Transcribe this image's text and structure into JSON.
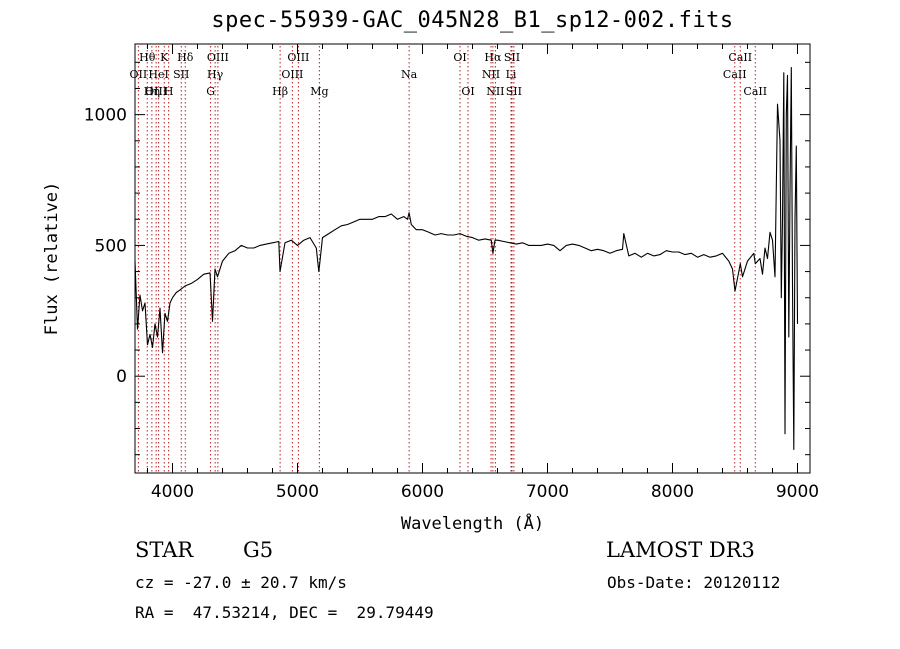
{
  "chart_data": {
    "type": "line",
    "title": "spec-55939-GAC_045N28_B1_sp12-002.fits",
    "xlabel": "Wavelength (Å)",
    "ylabel": "Flux (relative)",
    "xlim": [
      3700,
      9100
    ],
    "ylim": [
      -370,
      1270
    ],
    "xticks": [
      {
        "value": 4000,
        "label": "4000"
      },
      {
        "value": 5000,
        "label": "5000"
      },
      {
        "value": 6000,
        "label": "6000"
      },
      {
        "value": 7000,
        "label": "7000"
      },
      {
        "value": 8000,
        "label": "8000"
      },
      {
        "value": 9000,
        "label": "9000"
      }
    ],
    "yticks": [
      {
        "value": 0,
        "label": "0"
      },
      {
        "value": 500,
        "label": "500"
      },
      {
        "value": 1000,
        "label": "1000"
      }
    ],
    "series": [
      {
        "x": [
          3700,
          3720,
          3740,
          3760,
          3780,
          3800,
          3820,
          3840,
          3860,
          3880,
          3900,
          3920,
          3940,
          3960,
          3980,
          4000,
          4030,
          4060,
          4100,
          4150,
          4200,
          4250,
          4300,
          4320,
          4340,
          4360,
          4400,
          4450,
          4500,
          4550,
          4600,
          4650,
          4700,
          4750,
          4800,
          4850,
          4860,
          4900,
          4950,
          5000,
          5050,
          5100,
          5150,
          5170,
          5180,
          5200,
          5250,
          5300,
          5350,
          5400,
          5450,
          5500,
          5550,
          5600,
          5650,
          5700,
          5750,
          5800,
          5850,
          5880,
          5893,
          5910,
          5930,
          5950,
          6000,
          6050,
          6100,
          6150,
          6200,
          6250,
          6300,
          6350,
          6400,
          6450,
          6500,
          6550,
          6563,
          6580,
          6600,
          6650,
          6700,
          6750,
          6800,
          6850,
          6900,
          6950,
          7000,
          7050,
          7100,
          7150,
          7200,
          7250,
          7300,
          7350,
          7400,
          7450,
          7500,
          7550,
          7600,
          7610,
          7650,
          7700,
          7750,
          7800,
          7850,
          7900,
          7950,
          8000,
          8050,
          8100,
          8150,
          8200,
          8250,
          8300,
          8350,
          8400,
          8450,
          8480,
          8500,
          8542,
          8560,
          8600,
          8650,
          8662,
          8700,
          8720,
          8740,
          8760,
          8780,
          8800,
          8820,
          8840,
          8860,
          8870,
          8880,
          8890,
          8900,
          8910,
          8920,
          8930,
          8940,
          8950,
          8960,
          8970,
          8980,
          8990,
          9000
        ],
        "y": [
          440,
          180,
          310,
          250,
          280,
          120,
          160,
          110,
          200,
          150,
          260,
          90,
          240,
          210,
          280,
          300,
          320,
          330,
          345,
          355,
          370,
          390,
          395,
          210,
          410,
          380,
          440,
          470,
          480,
          500,
          490,
          490,
          500,
          505,
          510,
          515,
          400,
          510,
          520,
          500,
          520,
          530,
          490,
          400,
          440,
          530,
          545,
          560,
          575,
          580,
          590,
          600,
          600,
          600,
          610,
          610,
          620,
          600,
          610,
          600,
          625,
          580,
          570,
          560,
          560,
          550,
          540,
          545,
          540,
          540,
          545,
          535,
          530,
          520,
          525,
          520,
          470,
          520,
          520,
          515,
          510,
          505,
          510,
          500,
          500,
          500,
          505,
          500,
          480,
          500,
          505,
          500,
          490,
          480,
          485,
          480,
          470,
          480,
          485,
          545,
          460,
          470,
          455,
          470,
          460,
          465,
          480,
          475,
          475,
          465,
          470,
          455,
          465,
          455,
          460,
          470,
          440,
          410,
          325,
          430,
          380,
          440,
          470,
          430,
          450,
          390,
          490,
          450,
          550,
          520,
          380,
          1040,
          900,
          300,
          600,
          1160,
          -220,
          1000,
          1150,
          150,
          700,
          1180,
          350,
          -280,
          600,
          880,
          200
        ],
        "color": "#000000"
      }
    ],
    "line_markers": [
      {
        "label": "Hθ",
        "wavelength": 3798,
        "row": 1
      },
      {
        "label": "OII",
        "wavelength": 3727,
        "row": 2
      },
      {
        "label": "OIII",
        "wavelength": 3869,
        "row": 3
      },
      {
        "label": "K",
        "wavelength": 3934,
        "row": 1
      },
      {
        "label": "HeI",
        "wavelength": 3889,
        "row": 2
      },
      {
        "label": "Hη",
        "wavelength": 3835,
        "row": 3
      },
      {
        "label": "H",
        "wavelength": 3969,
        "row": 3
      },
      {
        "label": "Hδ",
        "wavelength": 4102,
        "row": 1
      },
      {
        "label": "SII",
        "wavelength": 4070,
        "row": 2
      },
      {
        "label": "OIII",
        "wavelength": 4363,
        "row": 1
      },
      {
        "label": "Hγ",
        "wavelength": 4341,
        "row": 2
      },
      {
        "label": "G",
        "wavelength": 4305,
        "row": 3
      },
      {
        "label": "Hβ",
        "wavelength": 4861,
        "row": 3
      },
      {
        "label": "OIII",
        "wavelength": 5007,
        "row": 1
      },
      {
        "label": "OIII",
        "wavelength": 4959,
        "row": 2
      },
      {
        "label": "Mg",
        "wavelength": 5175,
        "row": 3
      },
      {
        "label": "Na",
        "wavelength": 5893,
        "row": 2
      },
      {
        "label": "OI",
        "wavelength": 6300,
        "row": 1
      },
      {
        "label": "OI",
        "wavelength": 6364,
        "row": 3
      },
      {
        "label": "Hα",
        "wavelength": 6563,
        "row": 1
      },
      {
        "label": "SII",
        "wavelength": 6716,
        "row": 1
      },
      {
        "label": "NII",
        "wavelength": 6548,
        "row": 2
      },
      {
        "label": "Li",
        "wavelength": 6708,
        "row": 2
      },
      {
        "label": "NII",
        "wavelength": 6583,
        "row": 3
      },
      {
        "label": "SII",
        "wavelength": 6731,
        "row": 3
      },
      {
        "label": "CaII",
        "wavelength": 8542,
        "row": 1
      },
      {
        "label": "CaII",
        "wavelength": 8498,
        "row": 2
      },
      {
        "label": "CaII",
        "wavelength": 8662,
        "row": 3
      }
    ],
    "grid": false,
    "marker_color": "#b22222"
  },
  "info": {
    "object_class": "STAR",
    "subclass": "G5",
    "survey": "LAMOST DR3",
    "cz": "cz = -27.0 ± 20.7 km/s",
    "obs_date": "Obs-Date: 20120112",
    "coords": "RA =  47.53214, DEC =  29.79449"
  }
}
